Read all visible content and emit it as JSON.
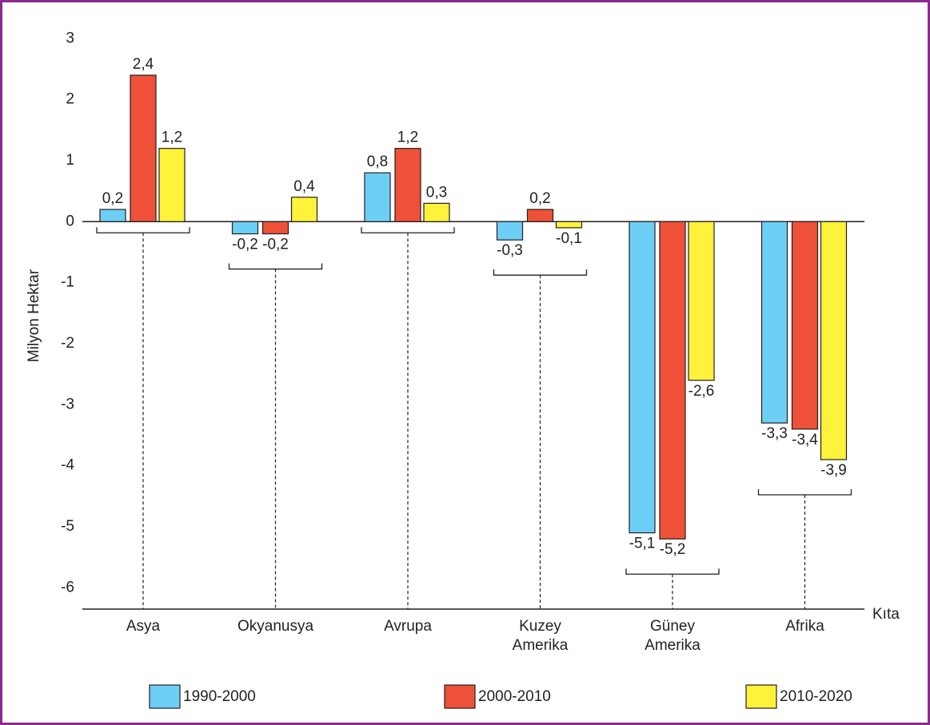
{
  "chart_data": {
    "type": "bar",
    "y_label": "Milyon Hektar",
    "x_label": "Kıta",
    "categories": [
      "Asya",
      "Okyanusya",
      "Avrupa",
      "Kuzey Amerika",
      "Güney Amerika",
      "Afrika"
    ],
    "series": [
      {
        "name": "1990-2000",
        "color": "#6dcff6",
        "values": [
          0.2,
          -0.2,
          0.8,
          -0.3,
          -5.1,
          -3.3
        ],
        "value_labels": [
          "0,2",
          "-0,2",
          "0,8",
          "-0,3",
          "-5,1",
          "-3,3"
        ]
      },
      {
        "name": "2000-2010",
        "color": "#ef5138",
        "values": [
          2.4,
          -0.2,
          1.2,
          0.2,
          -5.2,
          -3.4
        ],
        "value_labels": [
          "2,4",
          "-0,2",
          "1,2",
          "0,2",
          "-5,2",
          "-3,4"
        ]
      },
      {
        "name": "2010-2020",
        "color": "#fff23a",
        "values": [
          1.2,
          0.4,
          0.3,
          -0.1,
          -2.6,
          -3.9
        ],
        "value_labels": [
          "1,2",
          "0,4",
          "0,3",
          "-0,1",
          "-2,6",
          "-3,9"
        ]
      }
    ],
    "ylim": [
      -6.35,
      3.2
    ],
    "yticks": [
      3,
      2,
      1,
      0,
      -1,
      -2,
      -3,
      -4,
      -5,
      -6
    ],
    "grid": false
  }
}
